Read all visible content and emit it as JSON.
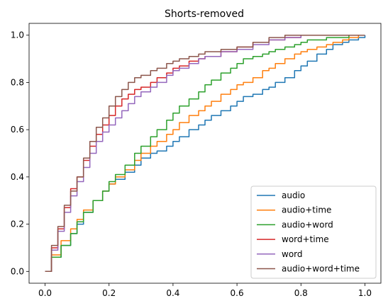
{
  "chart_data": {
    "type": "line",
    "title": "Shorts-removed",
    "xlabel": "",
    "ylabel": "",
    "xlim": [
      -0.05,
      1.05
    ],
    "ylim": [
      -0.05,
      1.05
    ],
    "xticks": [
      0.0,
      0.2,
      0.4,
      0.6,
      0.8,
      1.0
    ],
    "xtick_labels": [
      "0.0",
      "0.2",
      "0.4",
      "0.6",
      "0.8",
      "1.0"
    ],
    "yticks": [
      0.0,
      0.2,
      0.4,
      0.6,
      0.8,
      1.0
    ],
    "ytick_labels": [
      "0.0",
      "0.2",
      "0.4",
      "0.6",
      "0.8",
      "1.0"
    ],
    "grid": false,
    "legend_position": "lower-right",
    "series": [
      {
        "name": "audio",
        "color": "#1f77b4",
        "x": [
          0.0,
          0.02,
          0.05,
          0.08,
          0.1,
          0.12,
          0.15,
          0.18,
          0.2,
          0.22,
          0.25,
          0.28,
          0.3,
          0.33,
          0.35,
          0.38,
          0.4,
          0.42,
          0.45,
          0.48,
          0.5,
          0.52,
          0.55,
          0.58,
          0.6,
          0.62,
          0.65,
          0.68,
          0.7,
          0.72,
          0.75,
          0.78,
          0.8,
          0.82,
          0.85,
          0.88,
          0.9,
          0.93,
          0.95,
          0.98,
          1.0
        ],
        "y": [
          0.0,
          0.06,
          0.11,
          0.16,
          0.2,
          0.25,
          0.3,
          0.34,
          0.37,
          0.39,
          0.42,
          0.45,
          0.48,
          0.5,
          0.51,
          0.53,
          0.55,
          0.57,
          0.6,
          0.62,
          0.64,
          0.66,
          0.68,
          0.7,
          0.72,
          0.74,
          0.75,
          0.77,
          0.78,
          0.8,
          0.82,
          0.85,
          0.87,
          0.89,
          0.92,
          0.94,
          0.96,
          0.97,
          0.98,
          0.99,
          1.0
        ]
      },
      {
        "name": "audio+time",
        "color": "#ff7f0e",
        "x": [
          0.0,
          0.02,
          0.05,
          0.08,
          0.1,
          0.12,
          0.15,
          0.18,
          0.2,
          0.22,
          0.25,
          0.28,
          0.3,
          0.33,
          0.35,
          0.38,
          0.4,
          0.42,
          0.45,
          0.48,
          0.5,
          0.52,
          0.55,
          0.58,
          0.6,
          0.62,
          0.65,
          0.68,
          0.7,
          0.72,
          0.75,
          0.78,
          0.8,
          0.82,
          0.85,
          0.88,
          0.9,
          0.93,
          0.95,
          0.98,
          1.0
        ],
        "y": [
          0.0,
          0.07,
          0.13,
          0.18,
          0.22,
          0.26,
          0.3,
          0.34,
          0.37,
          0.4,
          0.43,
          0.47,
          0.5,
          0.53,
          0.55,
          0.58,
          0.6,
          0.63,
          0.66,
          0.68,
          0.7,
          0.72,
          0.75,
          0.77,
          0.79,
          0.8,
          0.82,
          0.85,
          0.86,
          0.88,
          0.9,
          0.92,
          0.93,
          0.94,
          0.95,
          0.96,
          0.97,
          0.98,
          0.99,
          1.0,
          1.0
        ]
      },
      {
        "name": "audio+word",
        "color": "#2ca02c",
        "x": [
          0.0,
          0.02,
          0.05,
          0.08,
          0.1,
          0.12,
          0.15,
          0.18,
          0.2,
          0.22,
          0.25,
          0.28,
          0.3,
          0.33,
          0.35,
          0.38,
          0.4,
          0.42,
          0.45,
          0.48,
          0.5,
          0.52,
          0.55,
          0.58,
          0.6,
          0.62,
          0.65,
          0.68,
          0.7,
          0.72,
          0.75,
          0.78,
          0.8,
          0.82,
          0.85,
          0.88,
          0.9,
          0.93,
          0.95,
          0.98,
          1.0
        ],
        "y": [
          0.0,
          0.06,
          0.11,
          0.16,
          0.21,
          0.25,
          0.3,
          0.34,
          0.38,
          0.41,
          0.45,
          0.5,
          0.53,
          0.57,
          0.6,
          0.64,
          0.67,
          0.7,
          0.73,
          0.76,
          0.79,
          0.81,
          0.84,
          0.86,
          0.88,
          0.9,
          0.91,
          0.92,
          0.93,
          0.94,
          0.95,
          0.96,
          0.97,
          0.98,
          0.98,
          0.99,
          0.99,
          0.99,
          1.0,
          1.0,
          1.0
        ]
      },
      {
        "name": "word+time",
        "color": "#d62728",
        "x": [
          0.0,
          0.02,
          0.04,
          0.06,
          0.08,
          0.1,
          0.12,
          0.14,
          0.16,
          0.18,
          0.2,
          0.22,
          0.24,
          0.26,
          0.28,
          0.3,
          0.33,
          0.35,
          0.38,
          0.4,
          0.42,
          0.45,
          0.48,
          0.5,
          0.55,
          0.6,
          0.65,
          0.7,
          0.75,
          0.8,
          0.85,
          0.9,
          0.95,
          1.0
        ],
        "y": [
          0.0,
          0.1,
          0.18,
          0.27,
          0.35,
          0.4,
          0.47,
          0.53,
          0.58,
          0.62,
          0.66,
          0.7,
          0.73,
          0.75,
          0.77,
          0.78,
          0.8,
          0.82,
          0.84,
          0.86,
          0.87,
          0.89,
          0.9,
          0.91,
          0.93,
          0.95,
          0.97,
          0.98,
          0.99,
          1.0,
          1.0,
          1.0,
          1.0,
          1.0
        ]
      },
      {
        "name": "word",
        "color": "#9467bd",
        "x": [
          0.0,
          0.02,
          0.04,
          0.06,
          0.08,
          0.1,
          0.12,
          0.14,
          0.16,
          0.18,
          0.2,
          0.22,
          0.24,
          0.26,
          0.28,
          0.3,
          0.33,
          0.35,
          0.38,
          0.4,
          0.42,
          0.45,
          0.48,
          0.5,
          0.55,
          0.6,
          0.65,
          0.7,
          0.75,
          0.8,
          0.85,
          0.9,
          0.95,
          1.0
        ],
        "y": [
          0.0,
          0.09,
          0.17,
          0.25,
          0.32,
          0.38,
          0.44,
          0.5,
          0.55,
          0.59,
          0.62,
          0.65,
          0.68,
          0.71,
          0.74,
          0.76,
          0.78,
          0.8,
          0.83,
          0.85,
          0.86,
          0.88,
          0.9,
          0.91,
          0.93,
          0.94,
          0.96,
          0.98,
          0.99,
          1.0,
          1.0,
          1.0,
          1.0,
          1.0
        ]
      },
      {
        "name": "audio+word+time",
        "color": "#8c564b",
        "x": [
          0.0,
          0.02,
          0.04,
          0.06,
          0.08,
          0.1,
          0.12,
          0.14,
          0.16,
          0.18,
          0.2,
          0.22,
          0.24,
          0.26,
          0.28,
          0.3,
          0.33,
          0.35,
          0.38,
          0.4,
          0.42,
          0.45,
          0.48,
          0.5,
          0.55,
          0.6,
          0.65,
          0.7,
          0.75,
          0.8,
          0.85,
          0.9,
          0.95,
          1.0
        ],
        "y": [
          0.0,
          0.11,
          0.19,
          0.28,
          0.34,
          0.4,
          0.48,
          0.55,
          0.61,
          0.65,
          0.7,
          0.74,
          0.77,
          0.8,
          0.82,
          0.83,
          0.85,
          0.86,
          0.88,
          0.89,
          0.9,
          0.91,
          0.92,
          0.93,
          0.94,
          0.95,
          0.97,
          0.99,
          1.0,
          1.0,
          1.0,
          1.0,
          1.0,
          1.0
        ]
      }
    ]
  }
}
